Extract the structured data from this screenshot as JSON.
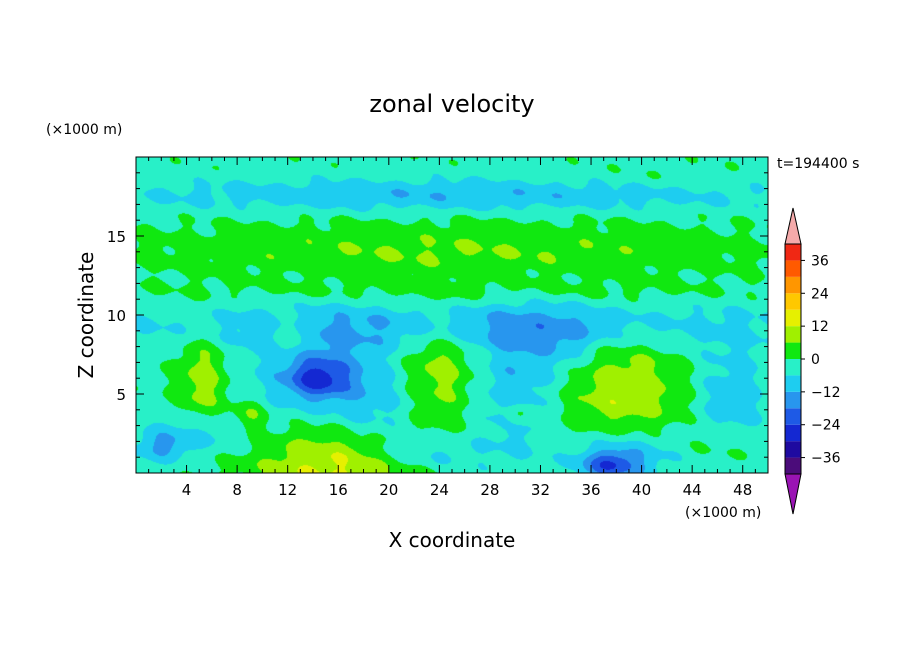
{
  "chart_data": {
    "type": "heatmap",
    "title": "zonal velocity",
    "xlabel": "X coordinate",
    "ylabel": "Z coordinate",
    "x_unit": "(×1000 m)",
    "y_unit": "(×1000 m)",
    "time_label": "t=194400 s",
    "xlim": [
      0,
      50
    ],
    "ylim": [
      0,
      20
    ],
    "x_ticks": [
      4,
      8,
      12,
      16,
      20,
      24,
      28,
      32,
      36,
      40,
      44,
      48
    ],
    "y_ticks": [
      5,
      10,
      15
    ],
    "colorbar": {
      "levels": [
        -42,
        -36,
        -30,
        -24,
        -18,
        -12,
        -6,
        0,
        6,
        12,
        18,
        24,
        30,
        36,
        42
      ],
      "tick_labels": [
        -36,
        -24,
        -12,
        0,
        12,
        24,
        36
      ],
      "colors": [
        "#4b0c7a",
        "#1e0aa0",
        "#1428d2",
        "#1e5ae6",
        "#2896ee",
        "#1ecdf0",
        "#28f0c8",
        "#10e810",
        "#a0f000",
        "#e6f000",
        "#ffc800",
        "#ff9600",
        "#ff5a00",
        "#f02814"
      ],
      "under_color": "#9a14b4",
      "over_color": "#f5aaaa"
    },
    "features": [
      {
        "x": 25,
        "z": 14,
        "sx": 24,
        "sz": 1.5,
        "value": 8
      },
      {
        "x": 25,
        "z": 11.6,
        "sx": 24,
        "sz": 0.6,
        "value": 3
      },
      {
        "x": 25,
        "z": 9.8,
        "sx": 24,
        "sz": 0.9,
        "value": -7
      },
      {
        "x": 25,
        "z": 8.6,
        "sx": 24,
        "sz": 0.9,
        "value": -6
      },
      {
        "x": 25,
        "z": 15.8,
        "sx": 24,
        "sz": 0.7,
        "value": 1
      },
      {
        "x": 25,
        "z": 17.6,
        "sx": 24,
        "sz": 0.9,
        "value": -9
      },
      {
        "x": 42,
        "z": 18.5,
        "sx": 6,
        "sz": 0.8,
        "value": 2
      },
      {
        "x": 16,
        "z": 0.5,
        "sx": 6,
        "sz": 2.2,
        "value": 16
      },
      {
        "x": 5.2,
        "z": 5.8,
        "sx": 1.8,
        "sz": 3.0,
        "value": 11
      },
      {
        "x": 9,
        "z": 3.6,
        "sx": 1.2,
        "sz": 0.9,
        "value": 9
      },
      {
        "x": 12.5,
        "z": 8.8,
        "sx": 1.6,
        "sz": 1.2,
        "value": 10
      },
      {
        "x": 14,
        "z": 6.5,
        "sx": 4.0,
        "sz": 2.6,
        "value": -10
      },
      {
        "x": 14.5,
        "z": 6.0,
        "sx": 2.2,
        "sz": 1.1,
        "value": -16
      },
      {
        "x": 24,
        "z": 6.5,
        "sx": 2.6,
        "sz": 3.0,
        "value": 11
      },
      {
        "x": 30,
        "z": 5.5,
        "sx": 2.8,
        "sz": 4.0,
        "value": -9
      },
      {
        "x": 30.2,
        "z": 3.7,
        "sx": 0.9,
        "sz": 0.7,
        "value": 9
      },
      {
        "x": 38.5,
        "z": 5.2,
        "sx": 4.5,
        "sz": 3.0,
        "value": 13
      },
      {
        "x": 39,
        "z": 1.2,
        "sx": 4.0,
        "sz": 1.5,
        "value": -10
      },
      {
        "x": 37.5,
        "z": 0.5,
        "sx": 2.0,
        "sz": 0.8,
        "value": -17
      },
      {
        "x": 5,
        "z": 2.5,
        "sx": 3.5,
        "sz": 1.2,
        "value": -9
      },
      {
        "x": 23,
        "z": 1.2,
        "sx": 4.0,
        "sz": 1.0,
        "value": -8
      },
      {
        "x": 2,
        "z": 1.6,
        "sx": 2.0,
        "sz": 0.8,
        "value": -9
      },
      {
        "x": 46,
        "z": 1.5,
        "sx": 3.0,
        "sz": 1.0,
        "value": 4
      },
      {
        "x": 47,
        "z": 5,
        "sx": 2.5,
        "sz": 3.0,
        "value": -8
      },
      {
        "x": 19,
        "z": 4,
        "sx": 3.0,
        "sz": 3.0,
        "value": -7
      },
      {
        "x": 34,
        "z": 8,
        "sx": 2.5,
        "sz": 2.0,
        "value": -7
      }
    ]
  }
}
